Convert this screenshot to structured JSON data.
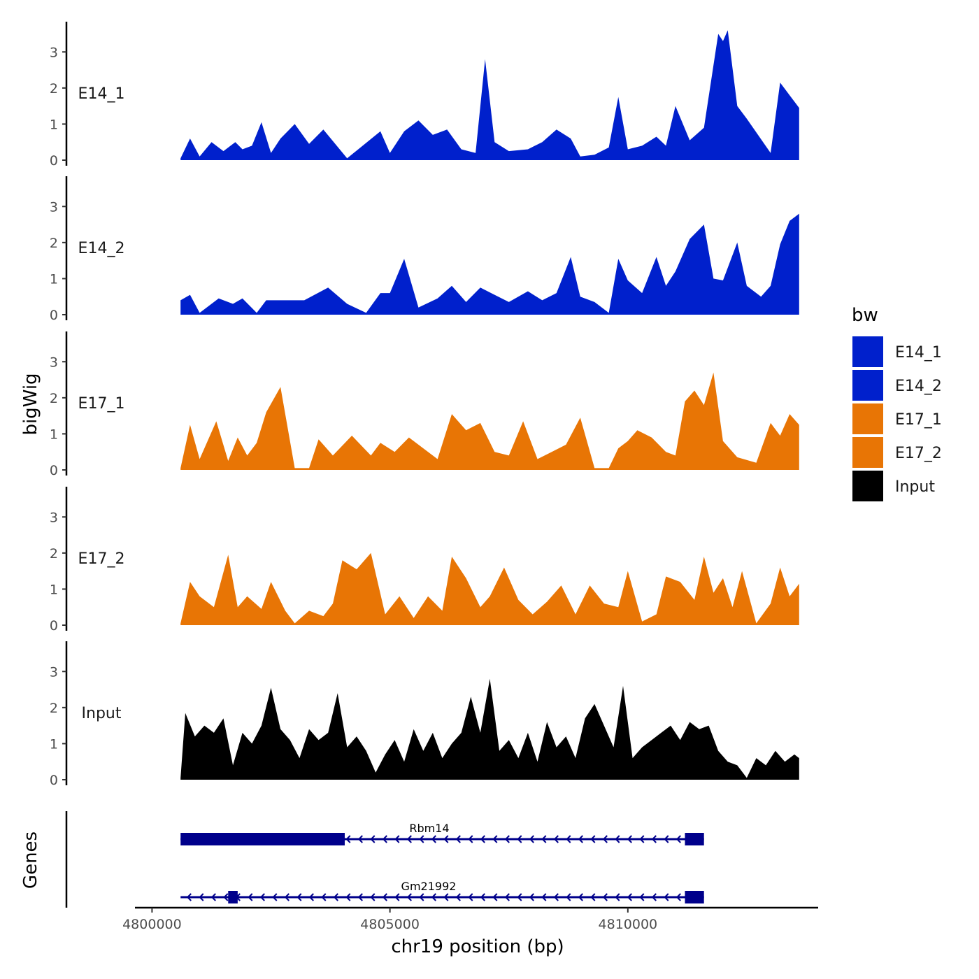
{
  "chart_data": {
    "type": "area",
    "y_axis_title": "bigWig",
    "gene_axis_title": "Genes",
    "x_axis_title": "chr19 position (bp)",
    "xlim": [
      4799700,
      4814000
    ],
    "x_ticks": [
      {
        "value": 4800000,
        "label": "4800000"
      },
      {
        "value": 4805000,
        "label": "4805000"
      },
      {
        "value": 4810000,
        "label": "4810000"
      }
    ],
    "ylim": [
      0,
      3.8
    ],
    "y_ticks": [
      {
        "value": 0,
        "label": "0"
      },
      {
        "value": 1,
        "label": "1"
      },
      {
        "value": 2,
        "label": "2"
      },
      {
        "value": 3,
        "label": "3"
      }
    ],
    "legend": {
      "title": "bw",
      "entries": [
        {
          "label": "E14_1",
          "color": "#0020cc"
        },
        {
          "label": "E14_2",
          "color": "#0020cc"
        },
        {
          "label": "E17_1",
          "color": "#e87505"
        },
        {
          "label": "E17_2",
          "color": "#e87505"
        },
        {
          "label": "Input",
          "color": "#000000"
        }
      ]
    },
    "tracks": [
      {
        "label": "E14_1",
        "color": "#0020cc",
        "x": [
          4800600,
          4800800,
          4801000,
          4801250,
          4801500,
          4801750,
          4801900,
          4802100,
          4802300,
          4802500,
          4802700,
          4803000,
          4803300,
          4803600,
          4804100,
          4804800,
          4805000,
          4805300,
          4805600,
          4805900,
          4806200,
          4806500,
          4806800,
          4807000,
          4807200,
          4807500,
          4807900,
          4808200,
          4808500,
          4808800,
          4809000,
          4809300,
          4809600,
          4809800,
          4810000,
          4810300,
          4810600,
          4810800,
          4811000,
          4811300,
          4811600,
          4811900,
          4812000,
          4812100,
          4812300,
          4812500,
          4813000,
          4813200,
          4813400,
          4813600
        ],
        "values": [
          0.05,
          0.6,
          0.1,
          0.5,
          0.25,
          0.5,
          0.3,
          0.4,
          1.05,
          0.2,
          0.6,
          1.0,
          0.45,
          0.85,
          0.05,
          0.8,
          0.2,
          0.8,
          1.1,
          0.7,
          0.85,
          0.3,
          0.2,
          2.8,
          0.5,
          0.25,
          0.3,
          0.5,
          0.85,
          0.6,
          0.1,
          0.15,
          0.35,
          1.75,
          0.3,
          0.4,
          0.65,
          0.4,
          1.5,
          0.55,
          0.9,
          3.5,
          3.3,
          3.6,
          1.5,
          1.15,
          0.2,
          2.15,
          1.8,
          1.45
        ]
      },
      {
        "label": "E14_2",
        "color": "#0020cc",
        "x": [
          4800600,
          4800800,
          4801000,
          4801400,
          4801700,
          4801900,
          4802200,
          4802400,
          4802800,
          4803200,
          4803700,
          4804100,
          4804500,
          4804800,
          4805000,
          4805300,
          4805600,
          4806000,
          4806300,
          4806600,
          4806900,
          4807200,
          4807500,
          4807900,
          4808200,
          4808500,
          4808800,
          4809000,
          4809300,
          4809600,
          4809800,
          4810000,
          4810300,
          4810600,
          4810800,
          4811000,
          4811300,
          4811600,
          4811800,
          4812000,
          4812300,
          4812500,
          4812800,
          4813000,
          4813200,
          4813400,
          4813600
        ],
        "values": [
          0.4,
          0.55,
          0.05,
          0.45,
          0.3,
          0.45,
          0.05,
          0.4,
          0.4,
          0.4,
          0.75,
          0.3,
          0.05,
          0.6,
          0.6,
          1.55,
          0.2,
          0.45,
          0.8,
          0.35,
          0.75,
          0.55,
          0.35,
          0.65,
          0.4,
          0.6,
          1.6,
          0.5,
          0.35,
          0.05,
          1.55,
          0.95,
          0.6,
          1.6,
          0.8,
          1.2,
          2.1,
          2.5,
          1.0,
          0.95,
          2.0,
          0.8,
          0.5,
          0.8,
          1.95,
          2.6,
          2.8
        ]
      },
      {
        "label": "E17_1",
        "color": "#e87505",
        "x": [
          4800600,
          4800800,
          4801000,
          4801200,
          4801350,
          4801600,
          4801800,
          4802000,
          4802200,
          4802400,
          4802700,
          4803000,
          4803300,
          4803500,
          4803800,
          4804200,
          4804600,
          4804800,
          4805100,
          4805400,
          4805700,
          4806000,
          4806300,
          4806600,
          4806900,
          4807200,
          4807500,
          4807800,
          4808100,
          4808400,
          4808700,
          4809000,
          4809300,
          4809600,
          4809800,
          4810000,
          4810200,
          4810500,
          4810800,
          4811000,
          4811200,
          4811400,
          4811600,
          4811800,
          4812000,
          4812300,
          4812700,
          4813000,
          4813200,
          4813400,
          4813600
        ],
        "values": [
          0.05,
          1.25,
          0.3,
          0.9,
          1.35,
          0.25,
          0.9,
          0.4,
          0.75,
          1.6,
          2.3,
          0.05,
          0.05,
          0.85,
          0.4,
          0.95,
          0.4,
          0.75,
          0.5,
          0.9,
          0.6,
          0.3,
          1.55,
          1.1,
          1.3,
          0.5,
          0.4,
          1.35,
          0.3,
          0.5,
          0.7,
          1.45,
          0.05,
          0.05,
          0.6,
          0.8,
          1.1,
          0.9,
          0.5,
          0.4,
          1.9,
          2.2,
          1.8,
          2.7,
          0.8,
          0.35,
          0.2,
          1.3,
          0.95,
          1.55,
          1.25
        ]
      },
      {
        "label": "E17_2",
        "color": "#e87505",
        "x": [
          4800600,
          4800800,
          4801000,
          4801300,
          4801600,
          4801800,
          4802000,
          4802300,
          4802500,
          4802800,
          4803000,
          4803300,
          4803600,
          4803800,
          4804000,
          4804300,
          4804600,
          4804900,
          4805200,
          4805500,
          4805800,
          4806100,
          4806300,
          4806600,
          4806900,
          4807100,
          4807400,
          4807700,
          4808000,
          4808300,
          4808600,
          4808900,
          4809200,
          4809500,
          4809800,
          4810000,
          4810300,
          4810600,
          4810800,
          4811100,
          4811400,
          4811600,
          4811800,
          4812000,
          4812200,
          4812400,
          4812700,
          4813000,
          4813200,
          4813400,
          4813600
        ],
        "values": [
          0.05,
          1.2,
          0.8,
          0.5,
          1.95,
          0.5,
          0.8,
          0.45,
          1.2,
          0.4,
          0.05,
          0.4,
          0.25,
          0.6,
          1.8,
          1.55,
          2.0,
          0.3,
          0.8,
          0.2,
          0.8,
          0.4,
          1.9,
          1.3,
          0.5,
          0.8,
          1.6,
          0.7,
          0.3,
          0.65,
          1.1,
          0.3,
          1.1,
          0.6,
          0.5,
          1.5,
          0.1,
          0.3,
          1.35,
          1.2,
          0.7,
          1.9,
          0.9,
          1.3,
          0.5,
          1.5,
          0.05,
          0.6,
          1.6,
          0.8,
          1.15
        ]
      },
      {
        "label": "Input",
        "color": "#000000",
        "x": [
          4800600,
          4800700,
          4800900,
          4801100,
          4801300,
          4801500,
          4801700,
          4801900,
          4802100,
          4802300,
          4802500,
          4802700,
          4802900,
          4803100,
          4803300,
          4803500,
          4803700,
          4803900,
          4804100,
          4804300,
          4804500,
          4804700,
          4804900,
          4805100,
          4805300,
          4805500,
          4805700,
          4805900,
          4806100,
          4806300,
          4806500,
          4806700,
          4806900,
          4807100,
          4807300,
          4807500,
          4807700,
          4807900,
          4808100,
          4808300,
          4808500,
          4808700,
          4808900,
          4809100,
          4809300,
          4809500,
          4809700,
          4809900,
          4810100,
          4810300,
          4810500,
          4810700,
          4810900,
          4811100,
          4811300,
          4811500,
          4811700,
          4811900,
          4812100,
          4812300,
          4812500,
          4812700,
          4812900,
          4813100,
          4813300,
          4813500,
          4813600
        ],
        "values": [
          0.05,
          1.85,
          1.2,
          1.5,
          1.3,
          1.7,
          0.4,
          1.3,
          1.0,
          1.5,
          2.55,
          1.4,
          1.1,
          0.6,
          1.4,
          1.1,
          1.3,
          2.4,
          0.9,
          1.2,
          0.8,
          0.2,
          0.7,
          1.1,
          0.5,
          1.4,
          0.8,
          1.3,
          0.6,
          1.0,
          1.3,
          2.3,
          1.3,
          2.8,
          0.8,
          1.1,
          0.6,
          1.3,
          0.5,
          1.6,
          0.9,
          1.2,
          0.6,
          1.7,
          2.1,
          1.5,
          0.9,
          2.6,
          0.6,
          0.9,
          1.1,
          1.3,
          1.5,
          1.1,
          1.6,
          1.4,
          1.5,
          0.8,
          0.5,
          0.4,
          0.05,
          0.6,
          0.4,
          0.8,
          0.5,
          0.7,
          0.6
        ]
      }
    ],
    "genes": [
      {
        "name": "Rbm14",
        "start": 4800600,
        "end": 4811600,
        "strand": "-",
        "exons": [
          {
            "start": 4800600,
            "end": 4804050,
            "thick": true
          },
          {
            "start": 4811200,
            "end": 4811600,
            "thick": true
          }
        ]
      },
      {
        "name": "Gm21992",
        "start": 4800600,
        "end": 4811600,
        "strand": "-",
        "exons": [
          {
            "start": 4801600,
            "end": 4801800,
            "thick": true
          },
          {
            "start": 4811200,
            "end": 4811600,
            "thick": true
          }
        ]
      }
    ],
    "gene_color": "#00008b"
  }
}
